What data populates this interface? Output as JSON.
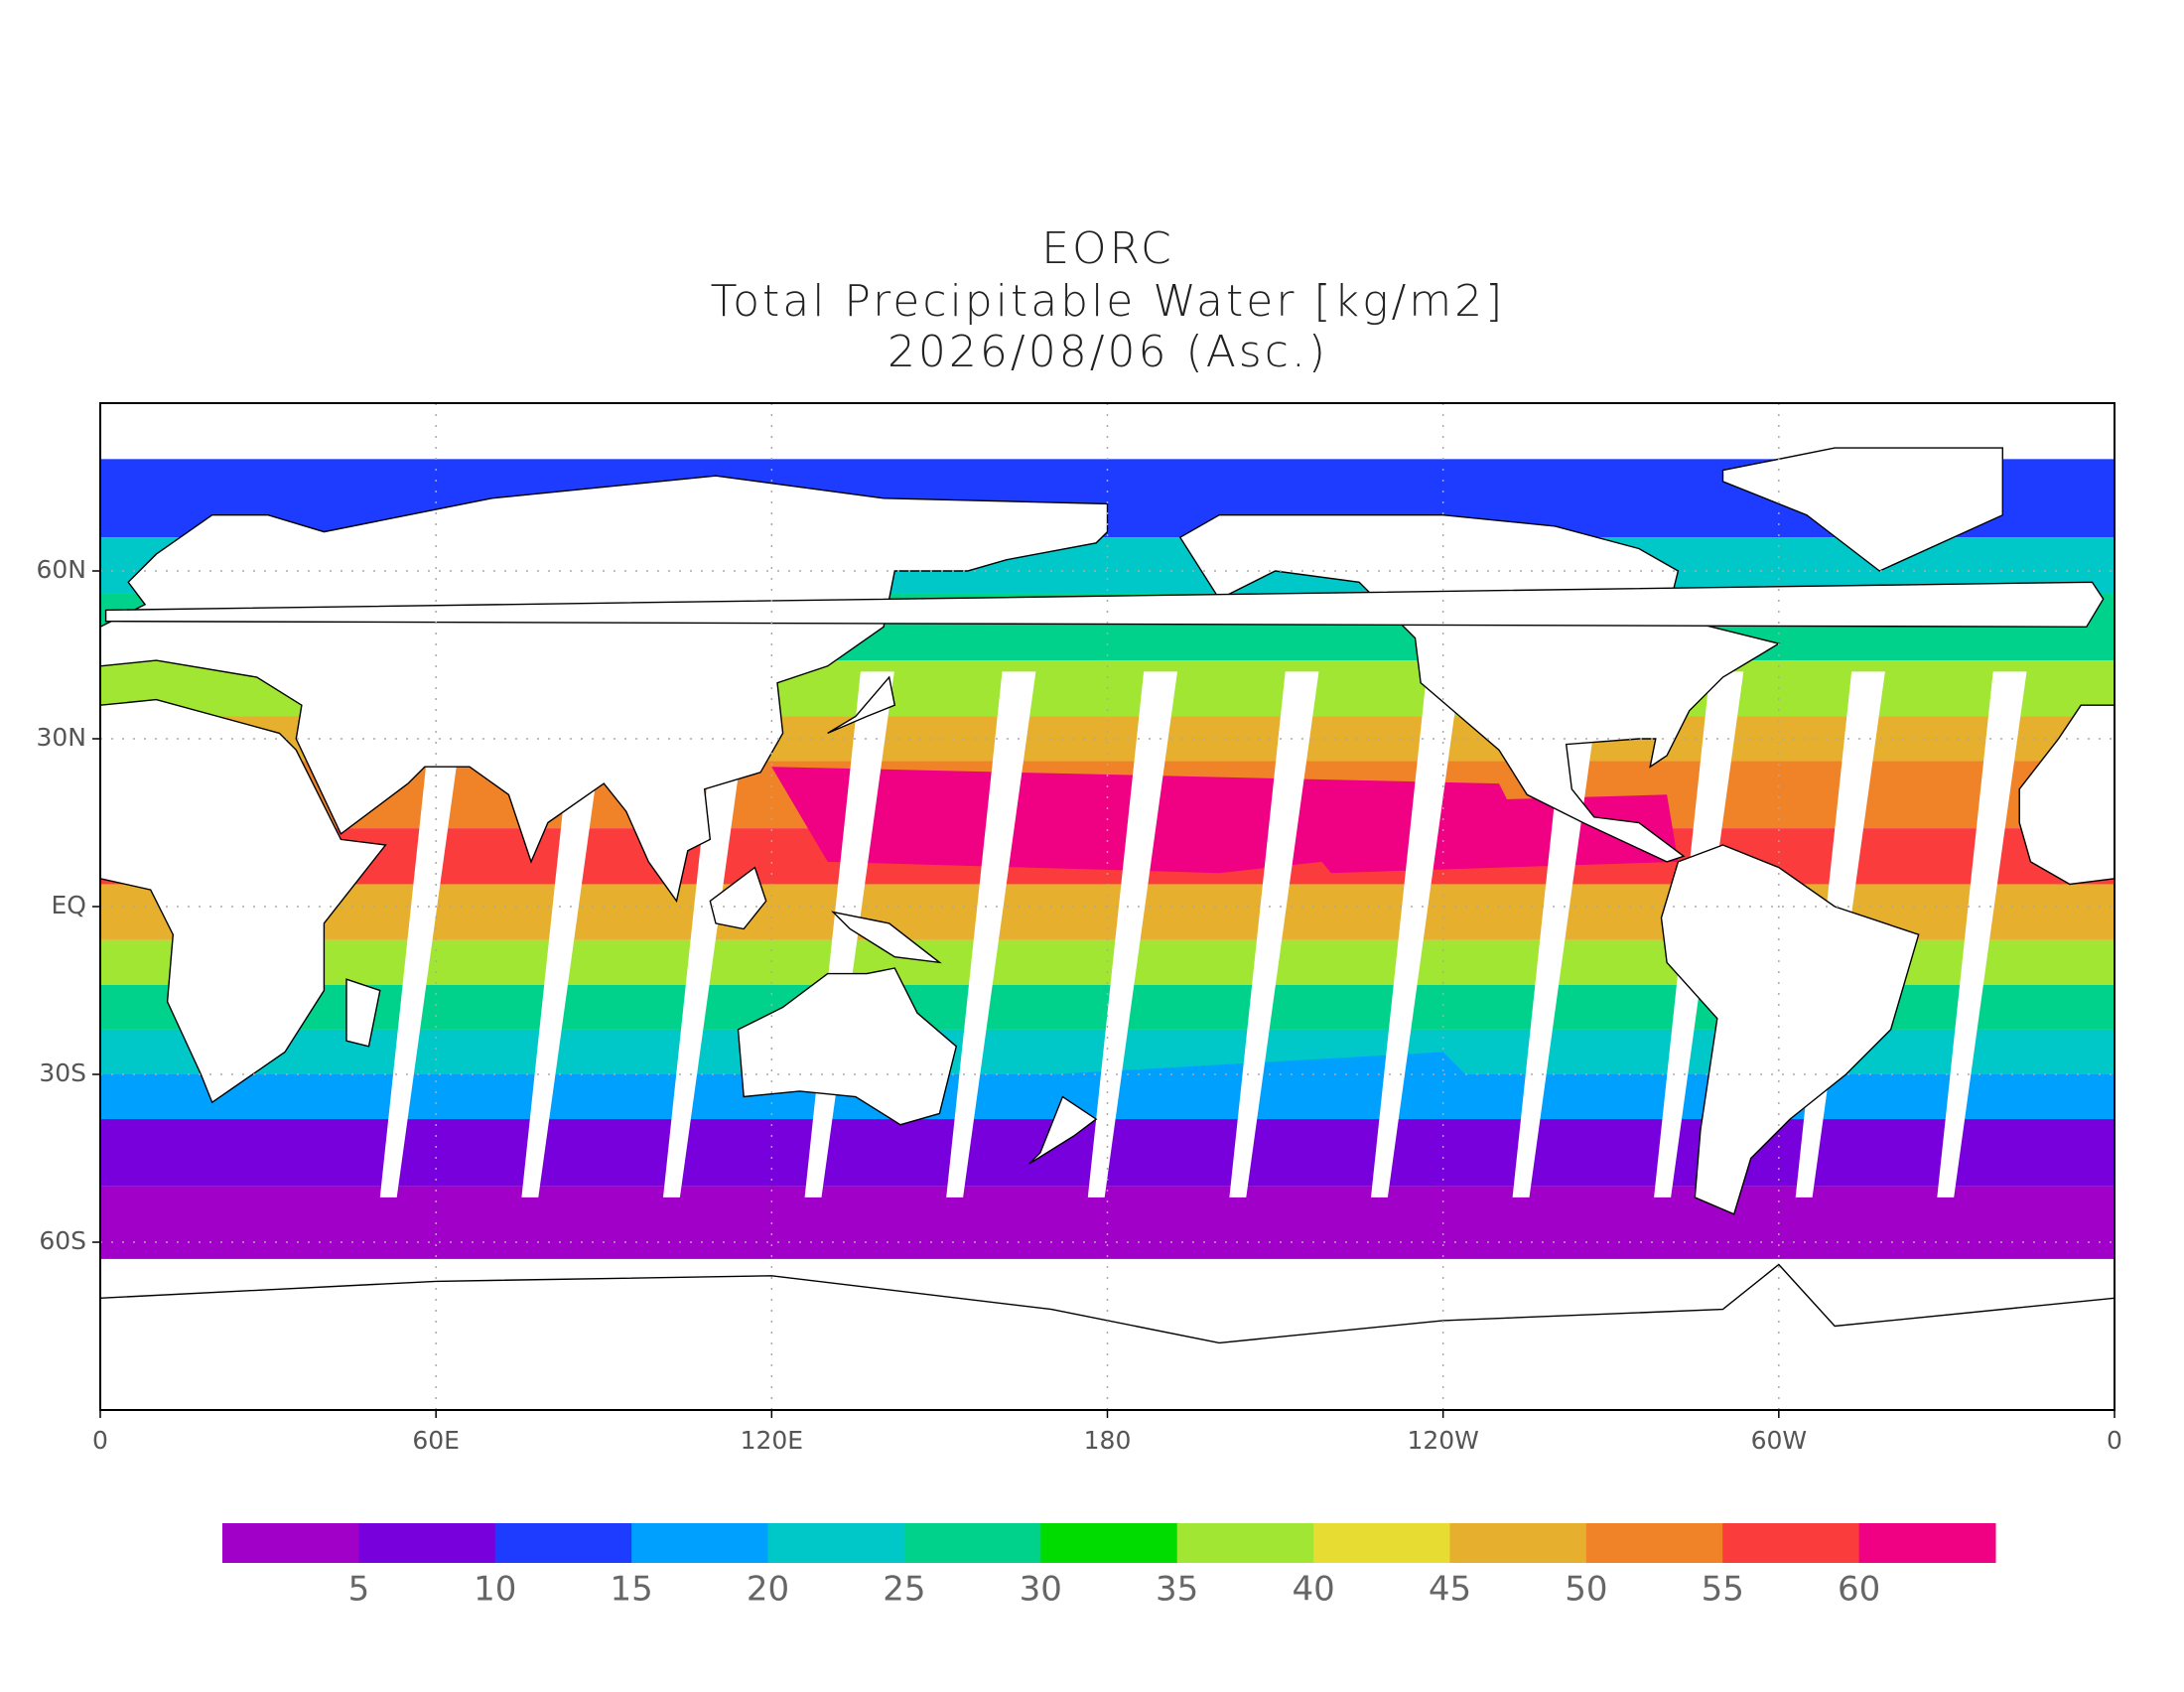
{
  "chart_data": {
    "type": "map",
    "title_lines": [
      "EORC",
      "Total Precipitable Water [kg/m2]",
      "2026/08/06 (Asc.)"
    ],
    "xlim": [
      0,
      360
    ],
    "ylim": [
      -90,
      90
    ],
    "xticks": [
      0,
      {
        "value": 60,
        "label": "60E"
      },
      {
        "value": 120,
        "label": "120E"
      },
      180,
      {
        "value": 240,
        "label": "120W"
      },
      {
        "value": 300,
        "label": "60W"
      },
      {
        "value": 360,
        "label": "0"
      }
    ],
    "yticks": [
      {
        "value": 60,
        "label": "60N"
      },
      {
        "value": 30,
        "label": "30N"
      },
      {
        "value": 0,
        "label": "EQ"
      },
      {
        "value": -30,
        "label": "30S"
      },
      {
        "value": -60,
        "label": "60S"
      }
    ],
    "grid": true,
    "colorbar": {
      "levels": [
        5,
        10,
        15,
        20,
        25,
        30,
        35,
        40,
        45,
        50,
        55,
        60
      ],
      "colors": [
        "#a000c8",
        "#7800dc",
        "#1e3cff",
        "#00a0ff",
        "#00c8c8",
        "#00d28c",
        "#00dc00",
        "#a0e632",
        "#e6dc32",
        "#e6af2d",
        "#f08228",
        "#fa3c3c",
        "#f00082"
      ]
    }
  }
}
